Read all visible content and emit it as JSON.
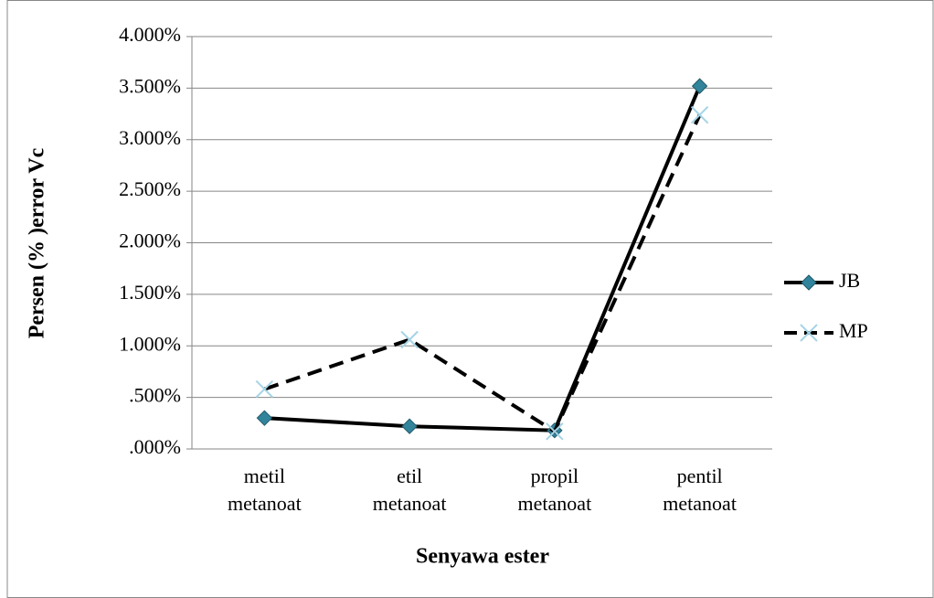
{
  "chart_data": {
    "type": "line",
    "x_label": "Senyawa ester",
    "y_label": "Persen (% )error Vc",
    "categories": [
      "metil metanoat",
      "etil metanoat",
      "propil metanoat",
      "pentil metanoat"
    ],
    "series": [
      {
        "name": "JB",
        "color": "#000000",
        "marker": "diamond",
        "marker_color": "#31849b",
        "dashed": false,
        "values": [
          0.3,
          0.22,
          0.18,
          3.52
        ]
      },
      {
        "name": "MP",
        "color": "#000000",
        "marker": "x",
        "marker_color": "#a5d4e6",
        "dashed": true,
        "values": [
          0.58,
          1.06,
          0.17,
          3.24
        ]
      }
    ],
    "ylim": [
      0,
      4
    ],
    "yticks": [
      {
        "value": 0,
        "label": ".000%"
      },
      {
        "value": 0.5,
        "label": ".500%"
      },
      {
        "value": 1,
        "label": "1.000%"
      },
      {
        "value": 1.5,
        "label": "1.500%"
      },
      {
        "value": 2,
        "label": "2.000%"
      },
      {
        "value": 2.5,
        "label": "2.500%"
      },
      {
        "value": 3,
        "label": "3.000%"
      },
      {
        "value": 3.5,
        "label": "3.500%"
      },
      {
        "value": 4,
        "label": "4.000%"
      }
    ],
    "grid": true,
    "legend": "right"
  }
}
